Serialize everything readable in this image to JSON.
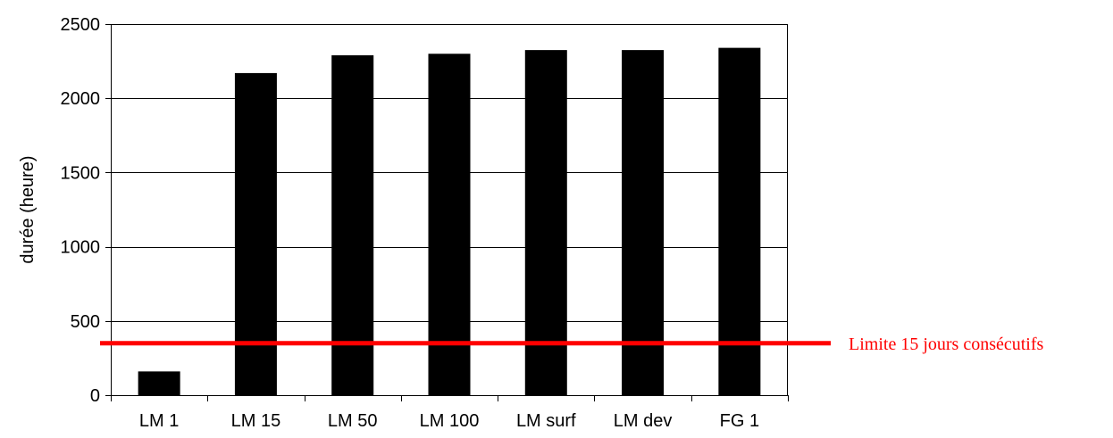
{
  "chart_data": {
    "type": "bar",
    "categories": [
      "LM 1",
      "LM 15",
      "LM 50",
      "LM 100",
      "LM surf",
      "LM dev",
      "FG 1"
    ],
    "values": [
      160,
      2170,
      2290,
      2300,
      2325,
      2325,
      2340
    ],
    "title": "",
    "xlabel": "",
    "ylabel": "durée (heure)",
    "ylim": [
      0,
      2500
    ],
    "yticks": [
      0,
      500,
      1000,
      1500,
      2000,
      2500
    ],
    "grid": true,
    "bar_color": "#000000",
    "reference_line": {
      "value": 350,
      "color": "#ff0000",
      "label": "Limite 15 jours consécutifs"
    }
  }
}
